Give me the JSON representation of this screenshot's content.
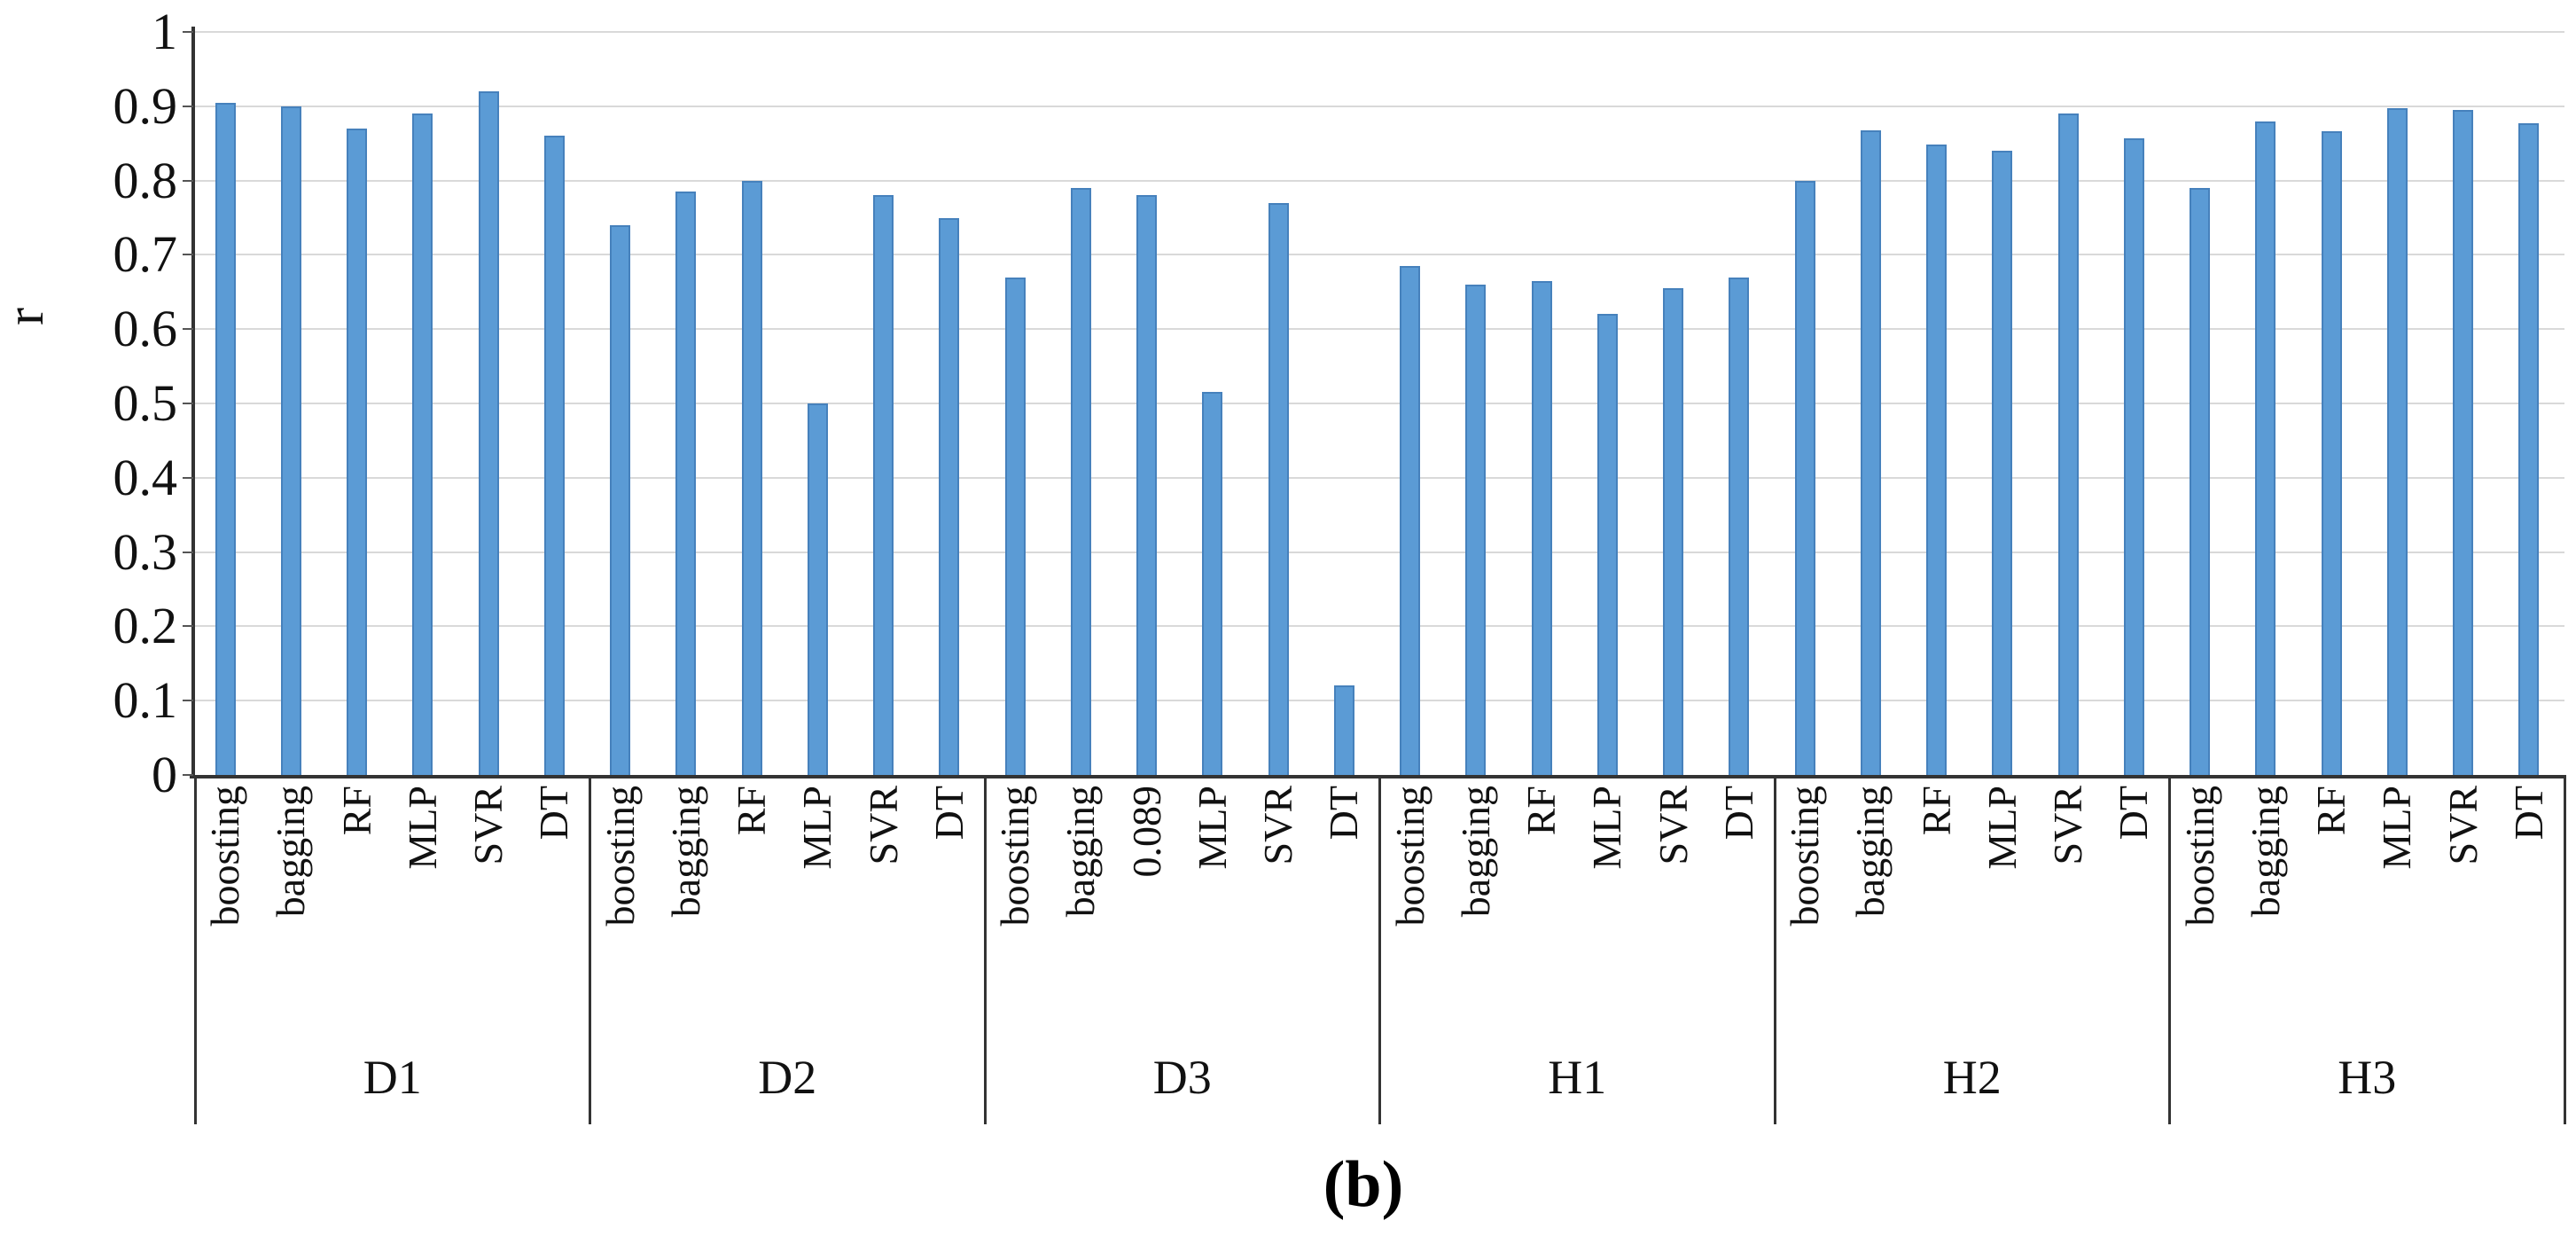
{
  "figure": {
    "caption": "(b)"
  },
  "chart_data": {
    "type": "bar",
    "title": "",
    "ylabel": "r",
    "xlabel": "",
    "ylim": [
      0,
      1
    ],
    "ytick_labels": [
      "0",
      "0.1",
      "0.2",
      "0.3",
      "0.4",
      "0.5",
      "0.6",
      "0.7",
      "0.8",
      "0.9",
      "1"
    ],
    "grid": true,
    "legend": false,
    "legend_position": "none",
    "bar_color": "#5B9BD5",
    "bar_border_color": "#4681BC",
    "grid_color": "#D9D9D9",
    "axis_color": "#333333",
    "groups": [
      {
        "label": "D1",
        "categories": [
          "boosting",
          "bagging",
          "RF",
          "MLP",
          "SVR",
          "DT"
        ],
        "values": [
          0.905,
          0.9,
          0.87,
          0.89,
          0.92,
          0.86
        ]
      },
      {
        "label": "D2",
        "categories": [
          "boosting",
          "bagging",
          "RF",
          "MLP",
          "SVR",
          "DT"
        ],
        "values": [
          0.74,
          0.785,
          0.8,
          0.5,
          0.78,
          0.75
        ]
      },
      {
        "label": "D3",
        "categories": [
          "boosting",
          "bagging",
          "0.089",
          "MLP",
          "SVR",
          "DT"
        ],
        "values": [
          0.67,
          0.79,
          0.78,
          0.515,
          0.77,
          0.12
        ]
      },
      {
        "label": "H1",
        "categories": [
          "boosting",
          "bagging",
          "RF",
          "MLP",
          "SVR",
          "DT"
        ],
        "values": [
          0.685,
          0.66,
          0.665,
          0.62,
          0.655,
          0.67
        ]
      },
      {
        "label": "H2",
        "categories": [
          "boosting",
          "bagging",
          "RF",
          "MLP",
          "SVR",
          "DT"
        ],
        "values": [
          0.8,
          0.867,
          0.848,
          0.84,
          0.89,
          0.857
        ]
      },
      {
        "label": "H3",
        "categories": [
          "boosting",
          "bagging",
          "RF",
          "MLP",
          "SVR",
          "DT"
        ],
        "values": [
          0.79,
          0.88,
          0.866,
          0.897,
          0.895,
          0.877
        ]
      }
    ]
  }
}
